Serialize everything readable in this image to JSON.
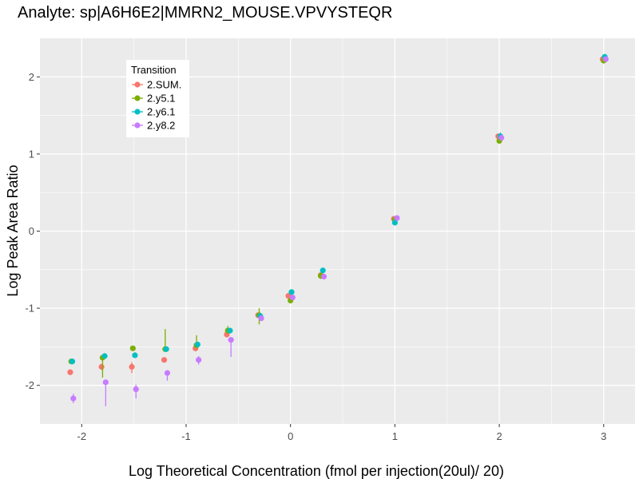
{
  "chart_data": {
    "type": "scatter",
    "title": "Analyte: sp|A6H6E2|MMRN2_MOUSE.VPVYSTEQR",
    "xlabel": "Log Theoretical Concentration (fmol per injection(20ul)/ 20)",
    "ylabel": "Log Peak Area Ratio",
    "xlim": [
      -2.4,
      3.3
    ],
    "ylim": [
      -2.5,
      2.5
    ],
    "x_ticks": [
      -2,
      -1,
      0,
      1,
      2,
      3
    ],
    "x_tick_labels": [
      "-2",
      "-1",
      "0",
      "1",
      "2",
      "3"
    ],
    "y_ticks": [
      -2,
      -1,
      0,
      1,
      2
    ],
    "y_tick_labels": [
      "-2",
      "-1",
      "0",
      "1",
      "2"
    ],
    "grid": true,
    "legend": {
      "title": "Transition",
      "position": "top-left inside"
    },
    "series": [
      {
        "name": "2.SUM.",
        "color": "#F8766D",
        "x": [
          -2.11,
          -1.81,
          -1.52,
          -1.21,
          -0.91,
          -0.61,
          -0.31,
          -0.02,
          0.29,
          0.99,
          1.99,
          2.99
        ],
        "y": [
          -1.83,
          -1.76,
          -1.76,
          -1.67,
          -1.52,
          -1.34,
          -1.09,
          -0.84,
          -0.57,
          0.16,
          1.23,
          2.23
        ],
        "ymin": [
          -1.83,
          -1.8,
          -1.84,
          -1.67,
          -1.56,
          -1.38,
          -1.11,
          -0.86,
          -0.59,
          0.14,
          1.21,
          2.21
        ],
        "ymax": [
          -1.83,
          -1.72,
          -1.7,
          -1.67,
          -1.5,
          -1.3,
          -1.07,
          -0.82,
          -0.55,
          0.18,
          1.25,
          2.25
        ]
      },
      {
        "name": "2.y5.1",
        "color": "#7CAE00",
        "x": [
          -2.1,
          -1.8,
          -1.51,
          -1.2,
          -0.9,
          -0.6,
          -0.3,
          0.0,
          0.29,
          1.0,
          2.0,
          3.0
        ],
        "y": [
          -1.69,
          -1.64,
          -1.52,
          -1.53,
          -1.48,
          -1.29,
          -1.09,
          -0.9,
          -0.58,
          0.15,
          1.17,
          2.21
        ],
        "ymin": [
          -1.72,
          -1.9,
          -1.55,
          -1.56,
          -1.52,
          -1.33,
          -1.21,
          -0.92,
          -0.62,
          0.13,
          1.15,
          2.19
        ],
        "ymax": [
          -1.66,
          -1.62,
          -1.49,
          -1.27,
          -1.35,
          -1.23,
          -1.0,
          -0.86,
          -0.54,
          0.17,
          1.2,
          2.24
        ]
      },
      {
        "name": "2.y6.1",
        "color": "#00BFC4",
        "x": [
          -2.09,
          -1.78,
          -1.49,
          -1.19,
          -0.89,
          -0.58,
          -0.29,
          0.01,
          0.31,
          1.0,
          2.01,
          3.01
        ],
        "y": [
          -1.69,
          -1.62,
          -1.61,
          -1.53,
          -1.47,
          -1.29,
          -1.1,
          -0.79,
          -0.51,
          0.11,
          1.23,
          2.26
        ],
        "ymin": [
          -1.72,
          -1.65,
          -1.64,
          -1.56,
          -1.5,
          -1.32,
          -1.13,
          -0.82,
          -0.54,
          0.09,
          1.21,
          2.24
        ],
        "ymax": [
          -1.66,
          -1.59,
          -1.58,
          -1.5,
          -1.44,
          -1.26,
          -1.07,
          -0.76,
          -0.48,
          0.13,
          1.28,
          2.28
        ]
      },
      {
        "name": "2.y8.2",
        "color": "#C77CFF",
        "x": [
          -2.08,
          -1.77,
          -1.48,
          -1.18,
          -0.88,
          -0.57,
          -0.28,
          0.02,
          0.32,
          1.02,
          2.02,
          3.02
        ],
        "y": [
          -2.17,
          -1.96,
          -2.05,
          -1.84,
          -1.67,
          -1.41,
          -1.13,
          -0.86,
          -0.59,
          0.17,
          1.21,
          2.23
        ],
        "ymin": [
          -2.23,
          -2.27,
          -2.17,
          -1.94,
          -1.73,
          -1.63,
          -1.16,
          -0.89,
          -0.62,
          0.15,
          1.19,
          2.21
        ],
        "ymax": [
          -2.11,
          -1.94,
          -1.99,
          -1.82,
          -1.62,
          -1.38,
          -1.1,
          -0.83,
          -0.56,
          0.19,
          1.24,
          2.25
        ]
      }
    ]
  }
}
